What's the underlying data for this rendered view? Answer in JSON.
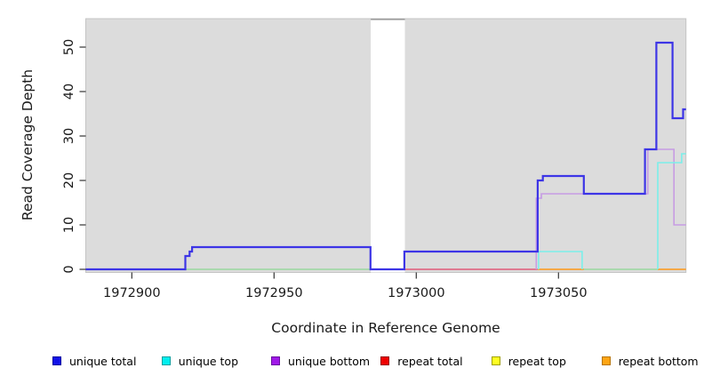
{
  "chart_data": {
    "type": "line",
    "subtype": "step-coverage-plot",
    "title": "",
    "xlabel": "Coordinate in Reference Genome",
    "ylabel": "Read Coverage Depth",
    "xlim": [
      1972884,
      1973095
    ],
    "ylim": [
      0,
      56
    ],
    "xticks": [
      1972900,
      1972950,
      1973000,
      1973050
    ],
    "yticks": [
      0,
      10,
      20,
      30,
      40,
      50
    ],
    "grid": "off",
    "panel_background": "#DCDCDC",
    "panel_border": "#C4C4C4",
    "gap_region": {
      "x1": 1972984,
      "x2": 1972996,
      "fill": "#FFFFFF",
      "top_line_color": "#8C8C8C"
    },
    "legend_position": "bottom",
    "series": [
      {
        "name": "unique total",
        "legend_fill": "#1111E8",
        "legend_border": "#0000A0",
        "line_color": "#3D35E6",
        "line_width": 2.2,
        "segments": [
          [
            [
              1972883.8,
              0
            ],
            [
              1972918.8,
              0
            ],
            [
              1972918.8,
              3
            ],
            [
              1972920.3,
              3
            ],
            [
              1972920.3,
              4
            ],
            [
              1972921.2,
              4
            ],
            [
              1972921.2,
              5
            ],
            [
              1972983.9,
              5
            ],
            [
              1972983.9,
              0
            ],
            [
              1972995.8,
              0
            ],
            [
              1972995.8,
              4
            ],
            [
              1973042.7,
              4
            ],
            [
              1973042.7,
              20
            ],
            [
              1973044.5,
              20
            ],
            [
              1973044.5,
              21
            ],
            [
              1973058.9,
              21
            ],
            [
              1973058.9,
              17
            ],
            [
              1973080.4,
              17
            ],
            [
              1973080.4,
              27
            ],
            [
              1973084.4,
              27
            ],
            [
              1973084.4,
              51
            ],
            [
              1973090.1,
              51
            ],
            [
              1973090.1,
              34
            ],
            [
              1973093.8,
              34
            ],
            [
              1973093.8,
              36
            ],
            [
              1973094.8,
              36
            ]
          ]
        ]
      },
      {
        "name": "unique top",
        "legend_fill": "#00EEEE",
        "legend_border": "#00A0A0",
        "line_color": "#7BEFEA",
        "line_width": 1.6,
        "segments": [
          [
            [
              1973043.0,
              0
            ],
            [
              1973043.0,
              4
            ],
            [
              1973058.3,
              4
            ],
            [
              1973058.3,
              0
            ]
          ],
          [
            [
              1973084.9,
              0
            ],
            [
              1973084.9,
              24
            ],
            [
              1973093.3,
              24
            ],
            [
              1973093.3,
              26
            ],
            [
              1973094.8,
              26
            ]
          ]
        ]
      },
      {
        "name": "unique bottom",
        "legend_fill": "#A018E8",
        "legend_border": "#6A0DA0",
        "line_color": "#C79CE3",
        "line_width": 1.6,
        "segments": [
          [
            [
              1973042.2,
              0
            ],
            [
              1973042.2,
              16
            ],
            [
              1973044.0,
              16
            ],
            [
              1973044.0,
              17
            ],
            [
              1973081.4,
              17
            ],
            [
              1973081.4,
              27
            ],
            [
              1973090.6,
              27
            ],
            [
              1973090.6,
              10
            ],
            [
              1973094.8,
              10
            ]
          ]
        ]
      },
      {
        "name": "repeat total",
        "legend_fill": "#EE0000",
        "legend_border": "#990000",
        "line_color": "#E05A78",
        "line_width": 1.5,
        "segments": [
          [
            [
              1972995.8,
              0
            ],
            [
              1973042.7,
              0
            ]
          ]
        ]
      },
      {
        "name": "repeat top",
        "legend_fill": "#FFFF22",
        "legend_border": "#A0A000",
        "line_color": "#EEE838",
        "line_width": 1.5,
        "segments": []
      },
      {
        "name": "repeat bottom",
        "legend_fill": "#FFA513",
        "legend_border": "#B87400",
        "line_color": "#F9A132",
        "line_width": 1.8,
        "segments": [
          [
            [
              1973042.7,
              0
            ],
            [
              1973058.9,
              0
            ]
          ],
          [
            [
              1973084.9,
              0
            ],
            [
              1973094.8,
              0
            ]
          ]
        ]
      }
    ],
    "overlap_lines": [
      {
        "name": "baseline-overlap-green",
        "line_color": "#9AD89E",
        "line_width": 1.5,
        "segments": [
          [
            [
              1972918.8,
              0
            ],
            [
              1972983.9,
              0
            ]
          ],
          [
            [
              1973058.9,
              0
            ],
            [
              1973084.9,
              0
            ]
          ]
        ]
      }
    ]
  }
}
